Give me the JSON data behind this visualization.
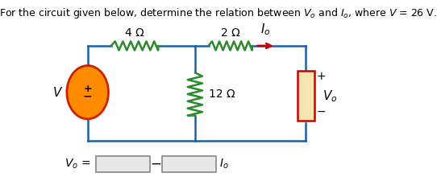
{
  "title": "For the circuit given below, determine the relation between $V_o$ and $I_o$, where $V$ = 26 V.",
  "circuit_color": "#1a5fa8",
  "resistor_h_color": "#2d8a2d",
  "resistor_v_color": "#2d8a2d",
  "source_fill": "#ff8c00",
  "source_edge": "#cc2200",
  "vo_fill": "#f5e6b0",
  "vo_edge": "#cc0000",
  "arrow_color": "#cc0000",
  "wire_color": "#1a5fa8",
  "label_4ohm": "4 Ω",
  "label_2ohm": "2 Ω",
  "label_12ohm": "12 Ω",
  "label_Io": "$I_o$",
  "label_Vo_circ": "$V_o$",
  "label_V": "$V$",
  "background_color": "#ffffff",
  "title_fontsize": 9.0,
  "label_fontsize": 10,
  "answer_fontsize": 10
}
